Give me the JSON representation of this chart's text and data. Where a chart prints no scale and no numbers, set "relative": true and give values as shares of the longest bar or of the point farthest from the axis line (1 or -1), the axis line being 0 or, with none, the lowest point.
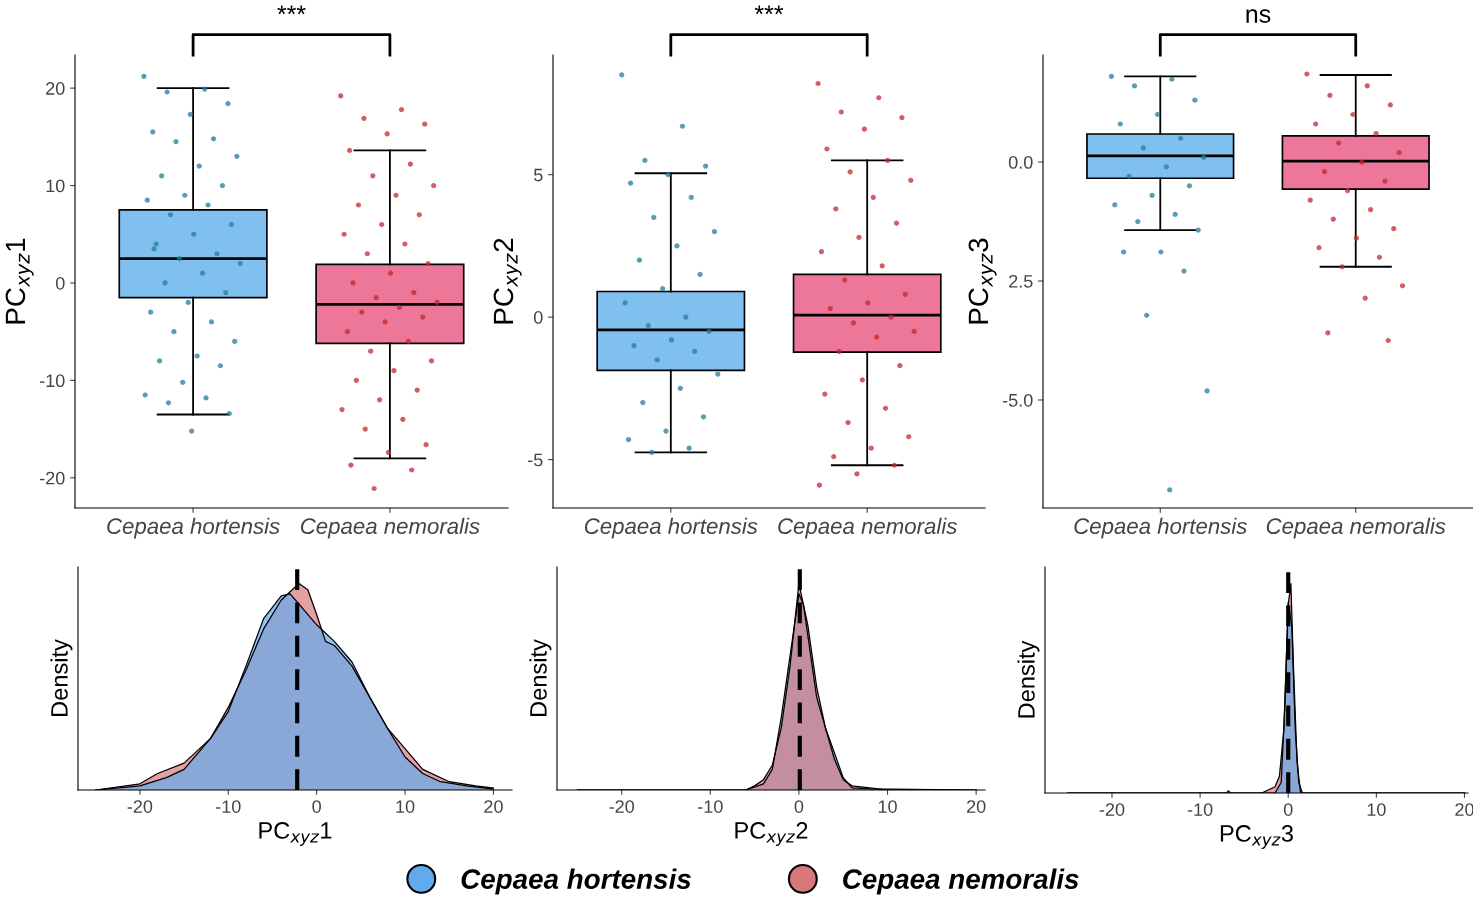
{
  "chart_data": [
    {
      "type": "box",
      "ylabel": "PC$_{xyz}$1",
      "categories": [
        "Cepaea hortensis",
        "Cepaea nemoralis"
      ],
      "colors": [
        "#7fc0ee",
        "#ec7799"
      ],
      "ylim": [
        -23.1,
        23.4
      ],
      "yticks": [
        -20,
        -10,
        0,
        10,
        20
      ],
      "annotations": [
        "***"
      ],
      "boxes": [
        {
          "low": -13.5,
          "q1": -1.5,
          "median": 2.5,
          "q3": 7.5,
          "high": 20
        },
        {
          "low": -18,
          "q1": -6.2,
          "median": -2.2,
          "q3": 1.9,
          "high": 13.6
        }
      ],
      "series": [
        {
          "type": "scatter",
          "color": "#1f7e9c",
          "x": [
            "Cepaea hortensis",
            "Cepaea hortensis",
            "Cepaea hortensis",
            "Cepaea hortensis",
            "Cepaea hortensis",
            "Cepaea hortensis",
            "Cepaea hortensis",
            "Cepaea hortensis",
            "Cepaea hortensis",
            "Cepaea hortensis",
            "Cepaea hortensis",
            "Cepaea hortensis",
            "Cepaea hortensis",
            "Cepaea hortensis",
            "Cepaea hortensis",
            "Cepaea hortensis",
            "Cepaea hortensis",
            "Cepaea hortensis",
            "Cepaea hortensis",
            "Cepaea hortensis",
            "Cepaea hortensis",
            "Cepaea hortensis",
            "Cepaea hortensis",
            "Cepaea hortensis",
            "Cepaea hortensis",
            "Cepaea hortensis",
            "Cepaea hortensis",
            "Cepaea hortensis",
            "Cepaea hortensis",
            "Cepaea hortensis",
            "Cepaea hortensis",
            "Cepaea hortensis",
            "Cepaea hortensis",
            "Cepaea hortensis",
            "Cepaea hortensis",
            "Cepaea hortensis",
            "Cepaea hortensis",
            "Cepaea hortensis",
            "Cepaea hortensis",
            "Cepaea hortensis"
          ],
          "values": [
            21.2,
            19.9,
            19.6,
            18.4,
            17.3,
            15.5,
            14.8,
            14.5,
            13,
            12,
            11,
            10,
            9,
            8.5,
            8,
            7,
            6,
            5,
            4,
            3,
            2.5,
            2,
            1,
            0,
            -1,
            -2,
            -3,
            -4,
            -5,
            -6,
            -7.5,
            -8,
            -8.5,
            -10.2,
            -11.5,
            -11.8,
            -12.3,
            -13.4,
            -15.2,
            3.5
          ]
        },
        {
          "type": "scatter",
          "color": "#c0282d",
          "x": [
            "Cepaea nemoralis",
            "Cepaea nemoralis",
            "Cepaea nemoralis",
            "Cepaea nemoralis",
            "Cepaea nemoralis",
            "Cepaea nemoralis",
            "Cepaea nemoralis",
            "Cepaea nemoralis",
            "Cepaea nemoralis",
            "Cepaea nemoralis",
            "Cepaea nemoralis",
            "Cepaea nemoralis",
            "Cepaea nemoralis",
            "Cepaea nemoralis",
            "Cepaea nemoralis",
            "Cepaea nemoralis",
            "Cepaea nemoralis",
            "Cepaea nemoralis",
            "Cepaea nemoralis",
            "Cepaea nemoralis",
            "Cepaea nemoralis",
            "Cepaea nemoralis",
            "Cepaea nemoralis",
            "Cepaea nemoralis",
            "Cepaea nemoralis",
            "Cepaea nemoralis",
            "Cepaea nemoralis",
            "Cepaea nemoralis",
            "Cepaea nemoralis",
            "Cepaea nemoralis",
            "Cepaea nemoralis",
            "Cepaea nemoralis",
            "Cepaea nemoralis",
            "Cepaea nemoralis",
            "Cepaea nemoralis",
            "Cepaea nemoralis",
            "Cepaea nemoralis",
            "Cepaea nemoralis",
            "Cepaea nemoralis",
            "Cepaea nemoralis",
            "Cepaea nemoralis",
            "Cepaea nemoralis"
          ],
          "values": [
            19.2,
            17.8,
            16.9,
            16.3,
            15.3,
            13.6,
            12.2,
            11,
            10,
            9,
            8,
            7,
            6,
            5,
            4,
            3,
            2,
            1,
            0,
            -1,
            -1.5,
            -2,
            -2.5,
            -3,
            -3.5,
            -4,
            -5,
            -6,
            -7,
            -8,
            -9,
            -10,
            -11,
            -12,
            -13,
            -14,
            -15,
            -16.6,
            -17.4,
            -18.7,
            -19.2,
            -21.1
          ]
        }
      ]
    },
    {
      "type": "box",
      "ylabel": "PC$_{xyz}$2",
      "categories": [
        "Cepaea hortensis",
        "Cepaea nemoralis"
      ],
      "colors": [
        "#7fc0ee",
        "#ec7799"
      ],
      "ylim": [
        -6.7,
        9.2
      ],
      "yticks": [
        -5,
        0,
        5
      ],
      "annotations": [
        "***"
      ],
      "boxes": [
        {
          "low": -4.75,
          "q1": -1.87,
          "median": -0.45,
          "q3": 0.9,
          "high": 5.05
        },
        {
          "low": -5.2,
          "q1": -1.23,
          "median": 0.07,
          "q3": 1.5,
          "high": 5.5
        }
      ],
      "series": [
        {
          "type": "scatter",
          "color": "#1f7e9c",
          "x": [
            "Cepaea hortensis",
            "Cepaea hortensis",
            "Cepaea hortensis",
            "Cepaea hortensis",
            "Cepaea hortensis",
            "Cepaea hortensis",
            "Cepaea hortensis",
            "Cepaea hortensis",
            "Cepaea hortensis",
            "Cepaea hortensis",
            "Cepaea hortensis",
            "Cepaea hortensis",
            "Cepaea hortensis",
            "Cepaea hortensis",
            "Cepaea hortensis",
            "Cepaea hortensis",
            "Cepaea hortensis",
            "Cepaea hortensis",
            "Cepaea hortensis",
            "Cepaea hortensis",
            "Cepaea hortensis",
            "Cepaea hortensis",
            "Cepaea hortensis",
            "Cepaea hortensis",
            "Cepaea hortensis",
            "Cepaea hortensis",
            "Cepaea hortensis",
            "Cepaea hortensis",
            "Cepaea hortensis"
          ],
          "values": [
            8.5,
            6.7,
            5.5,
            5.3,
            5.0,
            4.7,
            4.2,
            3.5,
            3.0,
            2.5,
            2.0,
            1.5,
            1.0,
            0.5,
            0,
            -0.3,
            -0.5,
            -0.8,
            -1,
            -1.2,
            -1.5,
            -2,
            -2.5,
            -3,
            -3.5,
            -4,
            -4.3,
            -4.6,
            -4.75
          ]
        },
        {
          "type": "scatter",
          "color": "#c0282d",
          "x": [
            "Cepaea nemoralis",
            "Cepaea nemoralis",
            "Cepaea nemoralis",
            "Cepaea nemoralis",
            "Cepaea nemoralis",
            "Cepaea nemoralis",
            "Cepaea nemoralis",
            "Cepaea nemoralis",
            "Cepaea nemoralis",
            "Cepaea nemoralis",
            "Cepaea nemoralis",
            "Cepaea nemoralis",
            "Cepaea nemoralis",
            "Cepaea nemoralis",
            "Cepaea nemoralis",
            "Cepaea nemoralis",
            "Cepaea nemoralis",
            "Cepaea nemoralis",
            "Cepaea nemoralis",
            "Cepaea nemoralis",
            "Cepaea nemoralis",
            "Cepaea nemoralis",
            "Cepaea nemoralis",
            "Cepaea nemoralis",
            "Cepaea nemoralis",
            "Cepaea nemoralis",
            "Cepaea nemoralis",
            "Cepaea nemoralis",
            "Cepaea nemoralis",
            "Cepaea nemoralis",
            "Cepaea nemoralis",
            "Cepaea nemoralis",
            "Cepaea nemoralis",
            "Cepaea nemoralis",
            "Cepaea nemoralis"
          ],
          "values": [
            8.2,
            7.7,
            7.2,
            7.0,
            6.6,
            5.9,
            5.5,
            5.1,
            4.8,
            4.2,
            3.8,
            3.3,
            2.8,
            2.3,
            1.8,
            1.3,
            0.8,
            0.5,
            0.3,
            0,
            -0.2,
            -0.5,
            -0.7,
            -1.2,
            -1.7,
            -2.2,
            -2.7,
            -3.2,
            -3.7,
            -4.2,
            -4.6,
            -4.9,
            -5.2,
            -5.5,
            -5.9
          ]
        }
      ]
    },
    {
      "type": "box",
      "ylabel": "PC$_{xyz}$3",
      "categories": [
        "Cepaea hortensis",
        "Cepaea nemoralis"
      ],
      "colors": [
        "#7fc0ee",
        "#ec7799"
      ],
      "ylim": [
        -7.27,
        2.25
      ],
      "yticks": [
        {
          "value": -5,
          "label": "-5.0"
        },
        {
          "value": -2.5,
          "label": "2.5"
        },
        {
          "value": 0,
          "label": "0.0"
        }
      ],
      "annotations": [
        "ns"
      ],
      "boxes": [
        {
          "low": -1.43,
          "q1": -0.34,
          "median": 0.13,
          "q3": 0.59,
          "high": 1.8
        },
        {
          "low": -2.2,
          "q1": -0.57,
          "median": 0.02,
          "q3": 0.55,
          "high": 1.83
        }
      ],
      "series": [
        {
          "type": "scatter",
          "color": "#1f7e9c",
          "x": [
            "Cepaea hortensis",
            "Cepaea hortensis",
            "Cepaea hortensis",
            "Cepaea hortensis",
            "Cepaea hortensis",
            "Cepaea hortensis",
            "Cepaea hortensis",
            "Cepaea hortensis",
            "Cepaea hortensis",
            "Cepaea hortensis",
            "Cepaea hortensis",
            "Cepaea hortensis",
            "Cepaea hortensis",
            "Cepaea hortensis",
            "Cepaea hortensis",
            "Cepaea hortensis",
            "Cepaea hortensis",
            "Cepaea hortensis",
            "Cepaea hortensis",
            "Cepaea hortensis",
            "Cepaea hortensis",
            "Cepaea hortensis",
            "Cepaea hortensis"
          ],
          "values": [
            1.8,
            1.74,
            1.6,
            1.3,
            1.0,
            0.8,
            0.5,
            0.3,
            0.1,
            -0.1,
            -0.3,
            -0.5,
            -0.7,
            -0.9,
            -1.1,
            -1.25,
            -1.43,
            -1.89,
            -1.89,
            -2.29,
            -3.22,
            -4.81,
            -6.89
          ]
        },
        {
          "type": "scatter",
          "color": "#c0282d",
          "x": [
            "Cepaea nemoralis",
            "Cepaea nemoralis",
            "Cepaea nemoralis",
            "Cepaea nemoralis",
            "Cepaea nemoralis",
            "Cepaea nemoralis",
            "Cepaea nemoralis",
            "Cepaea nemoralis",
            "Cepaea nemoralis",
            "Cepaea nemoralis",
            "Cepaea nemoralis",
            "Cepaea nemoralis",
            "Cepaea nemoralis",
            "Cepaea nemoralis",
            "Cepaea nemoralis",
            "Cepaea nemoralis",
            "Cepaea nemoralis",
            "Cepaea nemoralis",
            "Cepaea nemoralis",
            "Cepaea nemoralis",
            "Cepaea nemoralis",
            "Cepaea nemoralis",
            "Cepaea nemoralis",
            "Cepaea nemoralis",
            "Cepaea nemoralis"
          ],
          "values": [
            1.85,
            1.6,
            1.4,
            1.2,
            1.0,
            0.8,
            0.6,
            0.4,
            0.2,
            0,
            -0.2,
            -0.4,
            -0.6,
            -0.8,
            -1.0,
            -1.2,
            -1.4,
            -1.6,
            -1.8,
            -2.0,
            -2.2,
            -2.6,
            -2.86,
            -3.59,
            -3.75
          ]
        }
      ]
    },
    {
      "type": "area",
      "relative": true,
      "xlabel": "PC$_{xyz}$1",
      "ylabel": "Density",
      "xlim": [
        -27,
        22.1
      ],
      "xticks": [
        -20,
        -10,
        0,
        10,
        20
      ],
      "ref_lines": [
        {
          "axis": "x",
          "value": -2.2,
          "color": "#000000",
          "line_style": "dashed"
        }
      ],
      "series": [
        {
          "color": "#d9787a",
          "x": [
            -25,
            -20,
            -18,
            -15,
            -12,
            -10,
            -8,
            -6,
            -4,
            -2,
            -1,
            0,
            1,
            2,
            4,
            6,
            8,
            10,
            12,
            15,
            18,
            20
          ],
          "values": [
            0,
            0.03,
            0.08,
            0.13,
            0.25,
            0.4,
            0.58,
            0.78,
            0.92,
            1.0,
            0.97,
            0.85,
            0.72,
            0.7,
            0.6,
            0.45,
            0.3,
            0.2,
            0.1,
            0.04,
            0.02,
            0.01
          ]
        },
        {
          "color": "#62aaee",
          "x": [
            -25,
            -20,
            -17,
            -15,
            -12,
            -10,
            -8,
            -6,
            -4,
            -3,
            -2,
            0,
            2,
            4,
            6,
            8,
            10,
            12,
            14,
            17,
            20
          ],
          "values": [
            0,
            0.02,
            0.06,
            0.1,
            0.25,
            0.38,
            0.6,
            0.83,
            0.94,
            0.95,
            0.9,
            0.8,
            0.72,
            0.62,
            0.45,
            0.3,
            0.16,
            0.08,
            0.04,
            0.02,
            0.005
          ]
        }
      ]
    },
    {
      "type": "area",
      "relative": true,
      "xlabel": "PC$_{xyz}$2",
      "ylabel": "Density",
      "xlim": [
        -27.3,
        21
      ],
      "xticks": [
        -20,
        -10,
        0,
        10,
        20
      ],
      "legend": "bottom",
      "ref_lines": [
        {
          "axis": "x",
          "value": 0.1,
          "color": "#000000",
          "line_style": "dashed"
        }
      ],
      "series": [
        {
          "name": "Cepaea hortensis",
          "color": "#62aaee",
          "x": [
            -25,
            -6,
            -4,
            -3,
            -2,
            -1,
            0,
            0.5,
            1,
            2,
            3,
            4,
            5,
            6,
            8,
            20
          ],
          "values": [
            0,
            0,
            0.03,
            0.1,
            0.35,
            0.65,
            0.95,
            0.9,
            0.75,
            0.45,
            0.3,
            0.18,
            0.06,
            0.01,
            0.005,
            0
          ]
        },
        {
          "name": "Cepaea nemoralis",
          "color": "#d9787a",
          "x": [
            -25,
            -6,
            -5,
            -4,
            -3,
            -2,
            -1,
            0,
            1,
            2,
            3,
            4,
            5,
            6,
            8,
            10,
            20
          ],
          "values": [
            0,
            0,
            0.02,
            0.05,
            0.12,
            0.3,
            0.6,
            1.0,
            0.8,
            0.5,
            0.3,
            0.15,
            0.05,
            0.02,
            0.01,
            0,
            0
          ]
        }
      ]
    },
    {
      "type": "area",
      "relative": true,
      "xlabel": "PC$_{xyz}$3",
      "ylabel": "Density",
      "xlim": [
        -27.6,
        20.4
      ],
      "xticks": [
        -20,
        -10,
        0,
        10,
        20
      ],
      "ref_lines": [
        {
          "axis": "x",
          "value": 0,
          "color": "#000000",
          "line_style": "dashed"
        }
      ],
      "series": [
        {
          "color": "#d9787a",
          "x": [
            -25,
            -3,
            -1.5,
            -1,
            -0.5,
            0,
            0.3,
            0.6,
            1,
            1.4,
            20
          ],
          "values": [
            0,
            0,
            0.03,
            0.08,
            0.3,
            0.9,
            1.0,
            0.6,
            0.15,
            0,
            0
          ]
        },
        {
          "color": "#62aaee",
          "x": [
            -25,
            -7,
            -6.8,
            -6.5,
            -1.5,
            -0.8,
            -0.4,
            0,
            0.4,
            0.8,
            1.2,
            1.6,
            20
          ],
          "values": [
            0,
            0,
            0.01,
            0,
            0,
            0.05,
            0.4,
            0.91,
            0.8,
            0.3,
            0.05,
            0,
            0
          ]
        }
      ]
    }
  ]
}
